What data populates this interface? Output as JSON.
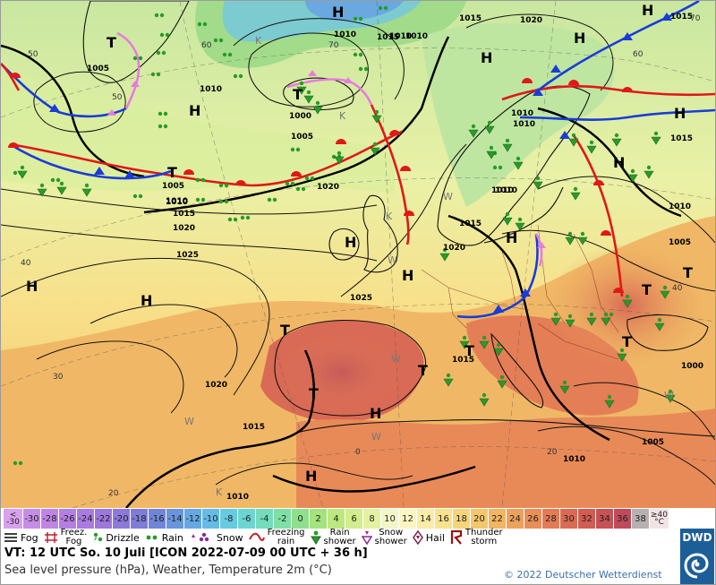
{
  "map": {
    "pressure_labels": [
      "1015",
      "1020",
      "1010",
      "1005",
      "1010",
      "1000",
      "1005",
      "1010",
      "1015",
      "1020",
      "1025",
      "1025",
      "1020",
      "1015",
      "1010",
      "1020",
      "1010",
      "1015",
      "1005",
      "1010",
      "1010",
      "1015",
      "1020",
      "1005",
      "1010",
      "1000",
      "1010",
      "1005",
      "1010",
      "1010",
      "1015",
      "1010",
      "1015",
      "1010",
      "1015"
    ],
    "high_symbol": "H",
    "low_symbol": "T",
    "high_count": 14,
    "low_count": 10,
    "lat_labels": [
      "70",
      "60",
      "50",
      "40",
      "30",
      "20",
      "60",
      "40",
      "50",
      "0",
      "20",
      "70"
    ],
    "weather_codes": [
      "W",
      "W",
      "W",
      "W",
      "W",
      "W",
      "K",
      "K",
      "K",
      "K"
    ]
  },
  "temperature_scale": {
    "unit": "°C",
    "low_end": [
      "<",
      "-30"
    ],
    "high_end": [
      "≥40",
      "°C"
    ],
    "values": [
      "-30",
      "-28",
      "-26",
      "-24",
      "-22",
      "-20",
      "-18",
      "-16",
      "-14",
      "-12",
      "-10",
      "-8",
      "-6",
      "-4",
      "-2",
      "0",
      "2",
      "4",
      "6",
      "8",
      "10",
      "12",
      "14",
      "16",
      "18",
      "20",
      "22",
      "24",
      "26",
      "28",
      "30",
      "32",
      "34",
      "36",
      "38"
    ],
    "colors": [
      "#c68de6",
      "#c085e4",
      "#b57ee2",
      "#a97ae0",
      "#9c77dc",
      "#8e78da",
      "#7f7cd8",
      "#7185d8",
      "#6895dc",
      "#65a8e3",
      "#66bbe6",
      "#66cbe0",
      "#6bd5d2",
      "#74dcbd",
      "#7ee0a4",
      "#8fe08c",
      "#a4e37d",
      "#bde87f",
      "#d3ec8d",
      "#e4f1a1",
      "#f3f6c6",
      "#fbf5c2",
      "#fbeca6",
      "#f8e28d",
      "#f5d57b",
      "#f3c76b",
      "#f0b662",
      "#eca25c",
      "#e88f58",
      "#e37c55",
      "#db6a53",
      "#d35c52",
      "#c85155",
      "#bf4a5a",
      "#b8b0b0"
    ]
  },
  "legend": [
    {
      "icon": "fog-icon",
      "label": "Fog"
    },
    {
      "icon": "freezing-fog-icon",
      "label": "Freez.\nFog"
    },
    {
      "icon": "drizzle-icon",
      "label": "Drizzle"
    },
    {
      "icon": "rain-icon",
      "label": "Rain"
    },
    {
      "icon": "snow-icon",
      "label": "Snow"
    },
    {
      "icon": "freezing-rain-icon",
      "label": "Freezing\nrain"
    },
    {
      "icon": "rain-shower-icon",
      "label": "Rain\nshower"
    },
    {
      "icon": "snow-shower-icon",
      "label": "Snow\nshower"
    },
    {
      "icon": "hail-icon",
      "label": "Hail"
    },
    {
      "icon": "thunderstorm-icon",
      "label": "Thunder\nstorm"
    }
  ],
  "footer": {
    "valid_time": "VT: 12 UTC So.  10 Juli [ICON 2022-07-09  00 UTC + 36 h]",
    "subtitle": "Sea level pressure (hPa), Weather, Temperature 2m (°C)",
    "copyright": "© 2022 Deutscher Wetterdienst",
    "logo_text": "DWD"
  },
  "colors": {
    "cold_front": "#1a3cd8",
    "warm_front": "#e01818",
    "occlusion": "#e87be0",
    "isobar": "#111111",
    "precip_green": "#2a9a2a"
  }
}
